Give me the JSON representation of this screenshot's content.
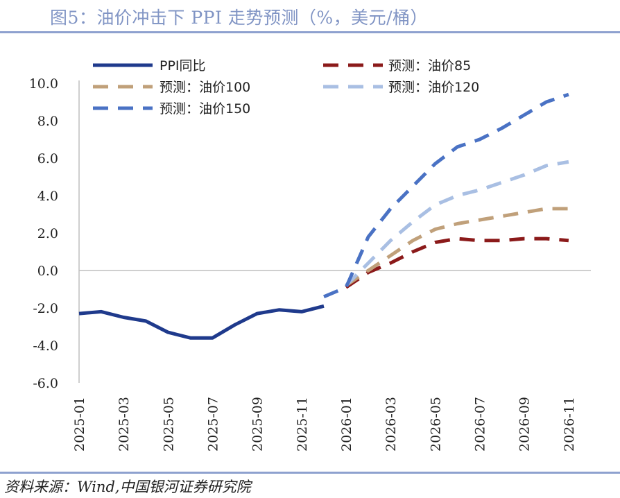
{
  "title": "图5：油价冲击下 PPI 走势预测（%，美元/桶）",
  "source": "资料来源：Wind,中国银河证券研究院",
  "chart_data": {
    "type": "line",
    "title": "图5：油价冲击下 PPI 走势预测（%，美元/桶）",
    "ylim": [
      -6,
      10
    ],
    "yticks": [
      -6,
      -4,
      -2,
      0,
      2,
      4,
      6,
      8,
      10
    ],
    "ytick_labels": [
      "-6.0",
      "-4.0",
      "-2.0",
      "0.0",
      "2.0",
      "4.0",
      "6.0",
      "8.0",
      "10.0"
    ],
    "x_tick_labels": [
      "2025-01",
      "2025-03",
      "2025-05",
      "2025-07",
      "2025-09",
      "2025-11",
      "2026-01",
      "2026-03",
      "2026-05",
      "2026-07",
      "2026-09",
      "2026-11"
    ],
    "x_categories": [
      "2025-01",
      "2025-02",
      "2025-03",
      "2025-04",
      "2025-05",
      "2025-06",
      "2025-07",
      "2025-08",
      "2025-09",
      "2025-10",
      "2025-11",
      "2025-12",
      "2026-01",
      "2026-02",
      "2026-03",
      "2026-04",
      "2026-05",
      "2026-06",
      "2026-07",
      "2026-08",
      "2026-09",
      "2026-10",
      "2026-11",
      "2026-12"
    ],
    "series": [
      {
        "name": "PPI同比",
        "color": "#1f3a8c",
        "style": "solid",
        "x_start": 0,
        "values": [
          -2.3,
          -2.2,
          -2.5,
          -2.7,
          -3.3,
          -3.6,
          -3.6,
          -2.9,
          -2.3,
          -2.1,
          -2.2,
          -1.9
        ]
      },
      {
        "name": "预测：油价85",
        "color": "#8b1a1a",
        "style": "dashed",
        "x_start": 12,
        "values": [
          -0.9,
          -0.1,
          0.4,
          1.0,
          1.5,
          1.7,
          1.6,
          1.6,
          1.7,
          1.7,
          1.6
        ]
      },
      {
        "name": "预测：油价100",
        "color": "#c0a07a",
        "style": "dashed",
        "x_start": 12,
        "values": [
          -0.8,
          0.0,
          0.8,
          1.6,
          2.2,
          2.5,
          2.7,
          2.9,
          3.1,
          3.3,
          3.3
        ]
      },
      {
        "name": "预测：油价120",
        "color": "#a9bfe3",
        "style": "dashed",
        "x_start": 12,
        "values": [
          -0.8,
          0.4,
          1.6,
          2.6,
          3.5,
          4.0,
          4.3,
          4.7,
          5.1,
          5.6,
          5.8
        ]
      },
      {
        "name": "预测：油价150",
        "color": "#4a72c4",
        "style": "dashed",
        "x_start": 11,
        "values": [
          -1.4,
          -0.9,
          1.8,
          3.3,
          4.5,
          5.7,
          6.6,
          7.0,
          7.6,
          8.3,
          9.0,
          9.4
        ]
      }
    ],
    "legend": "top"
  }
}
